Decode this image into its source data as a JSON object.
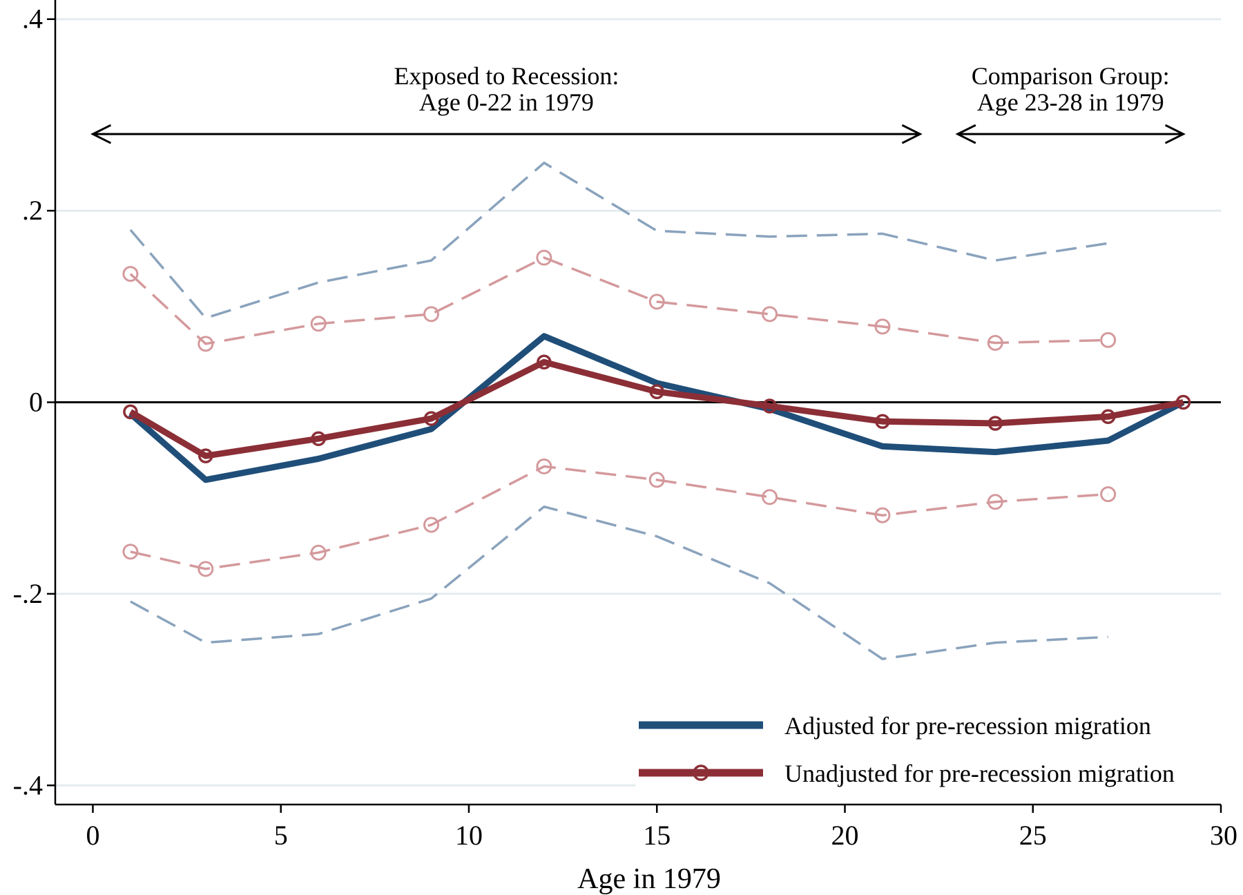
{
  "chart_data": {
    "type": "line",
    "title": "",
    "xlabel": "Age in 1979",
    "ylabel": "",
    "xlim": [
      -1,
      30
    ],
    "ylim": [
      -0.42,
      0.42
    ],
    "x_ticks": [
      {
        "value": 0,
        "label": "0"
      },
      {
        "value": 5,
        "label": "5"
      },
      {
        "value": 10,
        "label": "10"
      },
      {
        "value": 15,
        "label": "15"
      },
      {
        "value": 20,
        "label": "20"
      },
      {
        "value": 25,
        "label": "25"
      },
      {
        "value": 30,
        "label": "30"
      }
    ],
    "y_ticks": [
      {
        "value": -0.4,
        "label": "-.4"
      },
      {
        "value": -0.2,
        "label": "-.2"
      },
      {
        "value": 0,
        "label": "0"
      },
      {
        "value": 0.2,
        "label": ".2"
      },
      {
        "value": 0.4,
        "label": ".4"
      }
    ],
    "grid": true,
    "x": [
      1,
      3,
      6,
      9,
      12,
      15,
      18,
      21,
      24,
      27,
      29
    ],
    "series": [
      {
        "name": "Adjusted for pre-recession migration",
        "color": "#1f4e79",
        "style": "solid-thick",
        "values": [
          -0.012,
          -0.081,
          -0.059,
          -0.028,
          0.069,
          0.02,
          -0.007,
          -0.046,
          -0.052,
          -0.04,
          0.0
        ]
      },
      {
        "name": "Unadjusted for pre-recession migration",
        "color": "#8b2e36",
        "style": "solid-thick-circles",
        "values": [
          -0.01,
          -0.056,
          -0.038,
          -0.017,
          0.042,
          0.011,
          -0.004,
          -0.02,
          -0.022,
          -0.015,
          0.0
        ]
      },
      {
        "name": "Adjusted CI upper",
        "color": "#8aa3bd",
        "style": "dashed",
        "x": [
          1,
          3,
          6,
          9,
          12,
          15,
          18,
          21,
          24,
          27
        ],
        "values": [
          0.18,
          0.088,
          0.125,
          0.148,
          0.25,
          0.179,
          0.173,
          0.176,
          0.148,
          0.166
        ]
      },
      {
        "name": "Adjusted CI lower",
        "color": "#8aa3bd",
        "style": "dashed",
        "x": [
          1,
          3,
          6,
          9,
          12,
          15,
          18,
          21,
          24,
          27
        ],
        "values": [
          -0.208,
          -0.251,
          -0.242,
          -0.205,
          -0.109,
          -0.14,
          -0.189,
          -0.268,
          -0.251,
          -0.245
        ]
      },
      {
        "name": "Unadjusted CI upper",
        "color": "#d4999c",
        "style": "dashed-circles",
        "x": [
          1,
          3,
          6,
          9,
          12,
          15,
          18,
          21,
          24,
          27
        ],
        "values": [
          0.134,
          0.061,
          0.082,
          0.092,
          0.151,
          0.105,
          0.092,
          0.079,
          0.062,
          0.065
        ]
      },
      {
        "name": "Unadjusted CI lower",
        "color": "#d4999c",
        "style": "dashed-circles",
        "x": [
          1,
          3,
          6,
          9,
          12,
          15,
          18,
          21,
          24,
          27
        ],
        "values": [
          -0.156,
          -0.174,
          -0.157,
          -0.128,
          -0.067,
          -0.081,
          -0.099,
          -0.118,
          -0.104,
          -0.096
        ]
      }
    ],
    "annotations": [
      {
        "line1": "Exposed to Recession:",
        "line2": "Age 0-22 in 1979",
        "x_from": 0,
        "x_to": 22,
        "y": 0.28
      },
      {
        "line1": "Comparison Group:",
        "line2": "Age 23-28 in 1979",
        "x_from": 23,
        "x_to": 29,
        "y": 0.28
      }
    ],
    "legend": {
      "placement": "bottom-right",
      "entries": [
        "Adjusted for pre-recession migration",
        "Unadjusted for pre-recession migration"
      ]
    }
  }
}
